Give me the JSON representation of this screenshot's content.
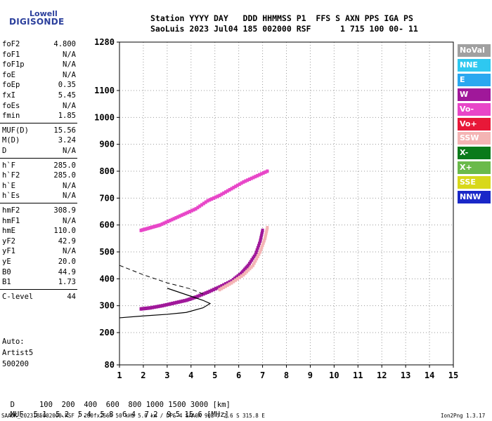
{
  "logo": {
    "line1": "Lowell",
    "line2": "DIGISONDE"
  },
  "header": {
    "line1": "Station YYYY DAY   DDD HHMMSS P1  FFS S AXN PPS IGA PS",
    "line2": "SaoLuis 2023 Jul04 185 002000 RSF      1 715 100 00- 11"
  },
  "params_group1": [
    {
      "name": "foF2",
      "value": "4.800"
    },
    {
      "name": "foF1",
      "value": "N/A"
    },
    {
      "name": "foF1p",
      "value": "N/A"
    },
    {
      "name": "foE",
      "value": "N/A"
    },
    {
      "name": "foEp",
      "value": "0.35"
    },
    {
      "name": "fxI",
      "value": "5.45"
    },
    {
      "name": "foEs",
      "value": "N/A"
    },
    {
      "name": "fmin",
      "value": "1.85"
    }
  ],
  "params_group2": [
    {
      "name": "MUF(D)",
      "value": "15.56"
    },
    {
      "name": "M(D)",
      "value": "3.24"
    },
    {
      "name": "D",
      "value": "N/A"
    }
  ],
  "params_group3": [
    {
      "name": "h`F",
      "value": "285.0"
    },
    {
      "name": "h`F2",
      "value": "285.0"
    },
    {
      "name": "h`E",
      "value": "N/A"
    },
    {
      "name": "h`Es",
      "value": "N/A"
    }
  ],
  "params_group4": [
    {
      "name": "hmF2",
      "value": "308.9"
    },
    {
      "name": "hmF1",
      "value": "N/A"
    },
    {
      "name": "hmE",
      "value": "110.0"
    },
    {
      "name": "yF2",
      "value": "42.9"
    },
    {
      "name": "yF1",
      "value": "N/A"
    },
    {
      "name": "yE",
      "value": "20.0"
    },
    {
      "name": "B0",
      "value": "44.9"
    },
    {
      "name": "B1",
      "value": "1.73"
    }
  ],
  "params_group5": [
    {
      "name": "C-level",
      "value": "44"
    }
  ],
  "autoscale": {
    "line1": "Auto:",
    "line2": "Artist5",
    "line3": "500200"
  },
  "legend": [
    {
      "label": "NoVal",
      "color": "#a0a0a0"
    },
    {
      "label": "NNE",
      "color": "#2ec8f0"
    },
    {
      "label": "E",
      "color": "#2aa8f0"
    },
    {
      "label": "W",
      "color": "#a0189a"
    },
    {
      "label": "Vo-",
      "color": "#e846c8"
    },
    {
      "label": "Vo+",
      "color": "#e81838"
    },
    {
      "label": "SSW",
      "color": "#f4b4b4"
    },
    {
      "label": "X-",
      "color": "#0a7a1a"
    },
    {
      "label": "X+",
      "color": "#6aba4a"
    },
    {
      "label": "SSE",
      "color": "#d8d81a"
    },
    {
      "label": "NNW",
      "color": "#1a28c8"
    }
  ],
  "bottom": {
    "d_label": "D",
    "d_values": "100  200  400  600  800 1000 1500 3000 [km]",
    "muf_label": "MUF",
    "muf_values": "5.1  5.2  5.4  5.8  6.4  7.2  9.5 15.6 [MHz]"
  },
  "footer": {
    "left": "SAA0K_2023185002000.RSF / 280fx256h 50 kHz 5.0 km / DPS-4 SAA0K 903 / 2.6 S 315.8 E",
    "right": "Ion2Png 1.3.17"
  },
  "chart_data": {
    "type": "scatter",
    "title": "",
    "xlabel": "",
    "ylabel": "",
    "x_ticks": [
      "1",
      "2",
      "3",
      "4",
      "5",
      "6",
      "7",
      "8",
      "9",
      "10",
      "11",
      "12",
      "13",
      "14",
      "15"
    ],
    "y_ticks": [
      "80",
      "200",
      "300",
      "400",
      "500",
      "600",
      "700",
      "800",
      "900",
      "1000",
      "1100",
      "1280"
    ],
    "xlim": [
      1,
      15
    ],
    "ylim": [
      80,
      1280
    ],
    "grid": true,
    "series": [
      {
        "name": "W",
        "values": [
          [
            1.9,
            288
          ],
          [
            2.3,
            292
          ],
          [
            2.8,
            300
          ],
          [
            3.3,
            310
          ],
          [
            3.8,
            320
          ],
          [
            4.2,
            332
          ],
          [
            4.7,
            350
          ],
          [
            5.2,
            370
          ],
          [
            5.7,
            392
          ],
          [
            6.1,
            420
          ],
          [
            6.4,
            450
          ],
          [
            6.7,
            490
          ],
          [
            6.9,
            540
          ],
          [
            7.0,
            580
          ]
        ]
      },
      {
        "name": "Vo-",
        "values": [
          [
            1.9,
            580
          ],
          [
            2.3,
            590
          ],
          [
            2.7,
            600
          ],
          [
            3.2,
            620
          ],
          [
            3.7,
            640
          ],
          [
            4.2,
            660
          ],
          [
            4.7,
            690
          ],
          [
            5.2,
            710
          ],
          [
            5.7,
            735
          ],
          [
            6.2,
            760
          ],
          [
            6.7,
            780
          ],
          [
            7.2,
            800
          ]
        ]
      },
      {
        "name": "SSW",
        "values": [
          [
            5.2,
            360
          ],
          [
            5.7,
            385
          ],
          [
            6.2,
            415
          ],
          [
            6.6,
            450
          ],
          [
            6.9,
            500
          ],
          [
            7.1,
            550
          ],
          [
            7.2,
            590
          ]
        ]
      }
    ],
    "profile_curve": [
      [
        1.0,
        255
      ],
      [
        2.0,
        262
      ],
      [
        3.0,
        268
      ],
      [
        3.8,
        275
      ],
      [
        4.5,
        292
      ],
      [
        4.8,
        308
      ],
      [
        4.5,
        320
      ],
      [
        4.0,
        335
      ],
      [
        3.5,
        350
      ],
      [
        3.0,
        365
      ]
    ]
  }
}
